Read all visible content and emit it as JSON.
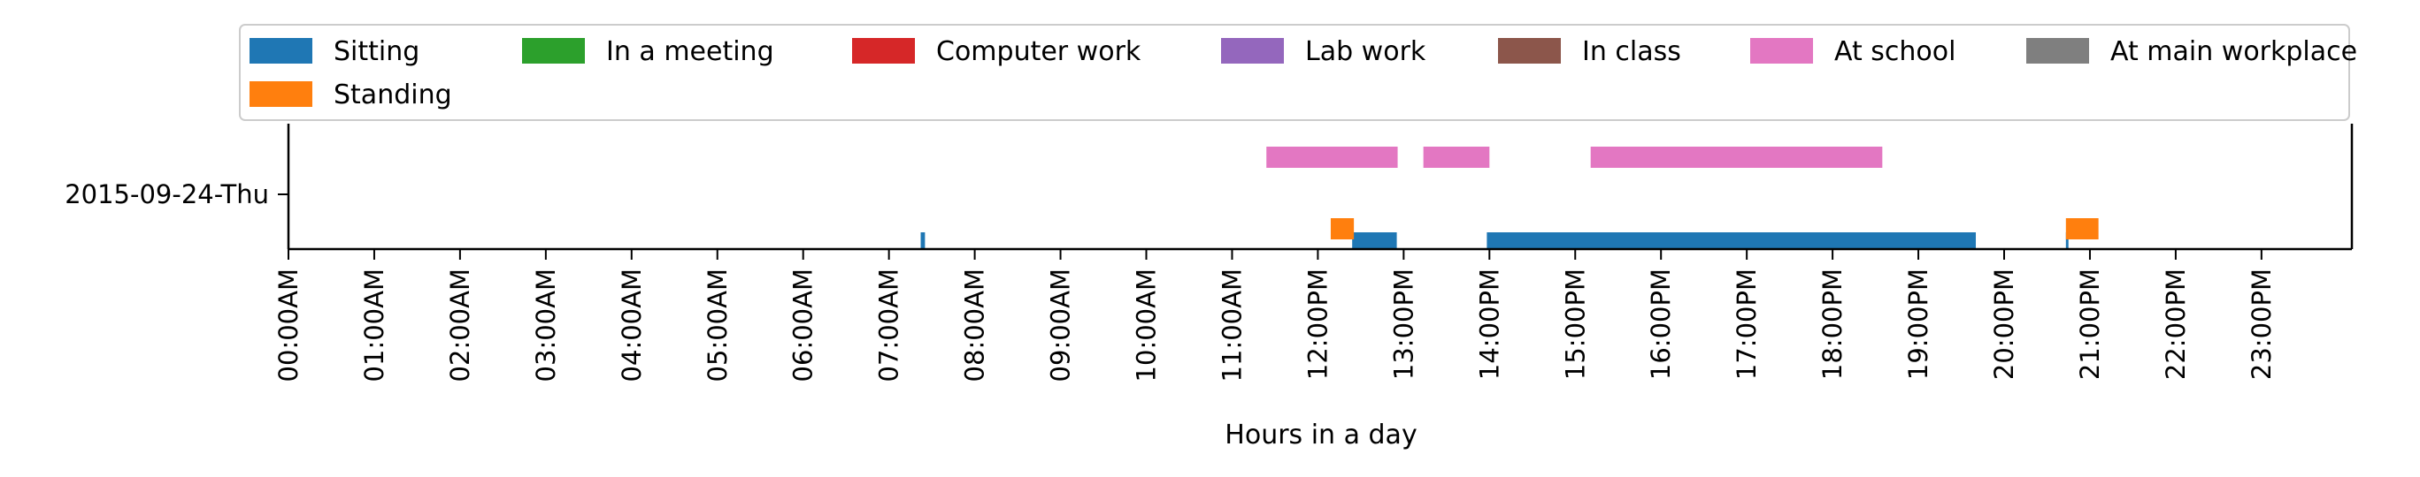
{
  "chart_data": {
    "type": "timeline",
    "xlabel": "Hours in a day",
    "xlim_hours": [
      0,
      24
    ],
    "x_ticks": [
      "00:00AM",
      "01:00AM",
      "02:00AM",
      "03:00AM",
      "04:00AM",
      "05:00AM",
      "06:00AM",
      "07:00AM",
      "08:00AM",
      "09:00AM",
      "10:00AM",
      "11:00AM",
      "12:00PM",
      "13:00PM",
      "14:00PM",
      "15:00PM",
      "16:00PM",
      "17:00PM",
      "18:00PM",
      "19:00PM",
      "20:00PM",
      "21:00PM",
      "22:00PM",
      "23:00PM"
    ],
    "y_categories": [
      "2015-09-24-Thu"
    ],
    "grid": false,
    "legend": {
      "placement": "top",
      "entries": [
        {
          "name": "Sitting",
          "color": "#1f77b4"
        },
        {
          "name": "In a meeting",
          "color": "#2ca02c"
        },
        {
          "name": "Computer work",
          "color": "#d62728"
        },
        {
          "name": "Lab work",
          "color": "#9467bd"
        },
        {
          "name": "In class",
          "color": "#8c564b"
        },
        {
          "name": "At school",
          "color": "#e377c2"
        },
        {
          "name": "At main workplace",
          "color": "#7f7f7f"
        },
        {
          "name": "Standing",
          "color": "#ff7f0e"
        }
      ]
    },
    "series": [
      {
        "name": "Sitting",
        "color": "#1f77b4",
        "lane": 0,
        "intervals": [
          [
            7.37,
            7.42
          ],
          [
            12.4,
            12.92
          ],
          [
            13.97,
            19.67
          ],
          [
            20.72,
            20.75
          ]
        ]
      },
      {
        "name": "Standing",
        "color": "#ff7f0e",
        "lane": 1,
        "intervals": [
          [
            12.15,
            12.42
          ],
          [
            20.72,
            21.1
          ]
        ]
      },
      {
        "name": "At school",
        "color": "#e377c2",
        "lane": 2,
        "intervals": [
          [
            11.4,
            12.93
          ],
          [
            13.23,
            14.0
          ],
          [
            15.18,
            18.58
          ]
        ]
      }
    ]
  }
}
